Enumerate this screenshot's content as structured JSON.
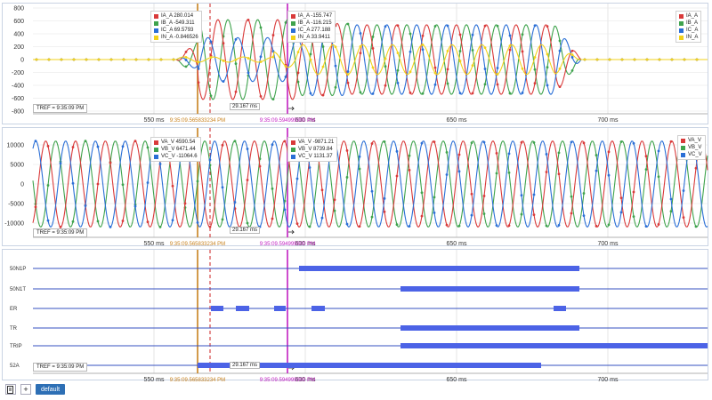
{
  "panels": {
    "current": {
      "yticks": [
        "800",
        "600",
        "400",
        "200",
        "0",
        "-200",
        "-400",
        "-600",
        "-800"
      ],
      "xticks": [
        "550 ms",
        "600 ms",
        "650 ms",
        "700 ms"
      ],
      "cursor1_time": "9:35:09.565833234 PM",
      "cursor2_time": "9:35:09.594999900 PM",
      "tref": "TREF = 9:35:09 PM",
      "delta": "29.167 ms",
      "cursor1_values": [
        {
          "name": "IA_A",
          "value": "280.014",
          "color": "#d93a3a"
        },
        {
          "name": "IB_A",
          "value": "-549.311",
          "color": "#3fa34d"
        },
        {
          "name": "IC_A",
          "value": "69.5793",
          "color": "#2b6fd6"
        },
        {
          "name": "IN_A",
          "value": "-0.846526",
          "color": "#f2d21b"
        }
      ],
      "cursor2_values": [
        {
          "name": "IA_A",
          "value": "-155.747",
          "color": "#d93a3a"
        },
        {
          "name": "IB_A",
          "value": "-116.215",
          "color": "#3fa34d"
        },
        {
          "name": "IC_A",
          "value": "277.188",
          "color": "#2b6fd6"
        },
        {
          "name": "IN_A",
          "value": "33.9411",
          "color": "#f2d21b"
        }
      ],
      "legend": [
        {
          "name": "IA_A",
          "color": "#d93a3a"
        },
        {
          "name": "IB_A",
          "color": "#3fa34d"
        },
        {
          "name": "IC_A",
          "color": "#2b6fd6"
        },
        {
          "name": "IN_A",
          "color": "#f2d21b"
        }
      ]
    },
    "voltage": {
      "yticks": [
        "10000",
        "5000",
        "0",
        "-5000",
        "-10000"
      ],
      "xticks": [
        "550 ms",
        "600 ms",
        "650 ms",
        "700 ms"
      ],
      "cursor1_time": "9:35:09.565833234 PM",
      "cursor2_time": "9:35:09.594999900 PM",
      "tref": "TREF = 9:35:09 PM",
      "delta": "29.167 ms",
      "cursor1_values": [
        {
          "name": "VA_V",
          "value": "4590.54",
          "color": "#d93a3a"
        },
        {
          "name": "VB_V",
          "value": "6471.44",
          "color": "#3fa34d"
        },
        {
          "name": "VC_V",
          "value": "-11064.6",
          "color": "#2b6fd6"
        }
      ],
      "cursor2_values": [
        {
          "name": "VA_V",
          "value": "-9871.21",
          "color": "#d93a3a"
        },
        {
          "name": "VB_V",
          "value": "8739.84",
          "color": "#3fa34d"
        },
        {
          "name": "VC_V",
          "value": "1131.37",
          "color": "#2b6fd6"
        }
      ],
      "legend": [
        {
          "name": "VA_V",
          "color": "#d93a3a"
        },
        {
          "name": "VB_V",
          "color": "#3fa34d"
        },
        {
          "name": "VC_V",
          "color": "#2b6fd6"
        }
      ]
    },
    "digital": {
      "rows": [
        "50N1P",
        "50N1T",
        "ER",
        "TR",
        "TRIP",
        "52A"
      ],
      "xticks": [
        "550 ms",
        "600 ms",
        "650 ms",
        "700 ms"
      ],
      "cursor1_time": "9:35:09.565833234 PM",
      "cursor2_time": "9:35:09.594999900 PM",
      "tref": "TREF = 9:35:09 PM",
      "delta": "29.167 ms"
    }
  },
  "toolbar": {
    "page_icon": "page-icon",
    "add_icon": "plus-icon",
    "add_symbol": "+",
    "default_label": "default"
  },
  "colors": {
    "cursor1": "#c8821e",
    "cursor2": "#c21fc2",
    "cursor_dash": "#cc2222",
    "digital": "#4c63e6"
  }
}
